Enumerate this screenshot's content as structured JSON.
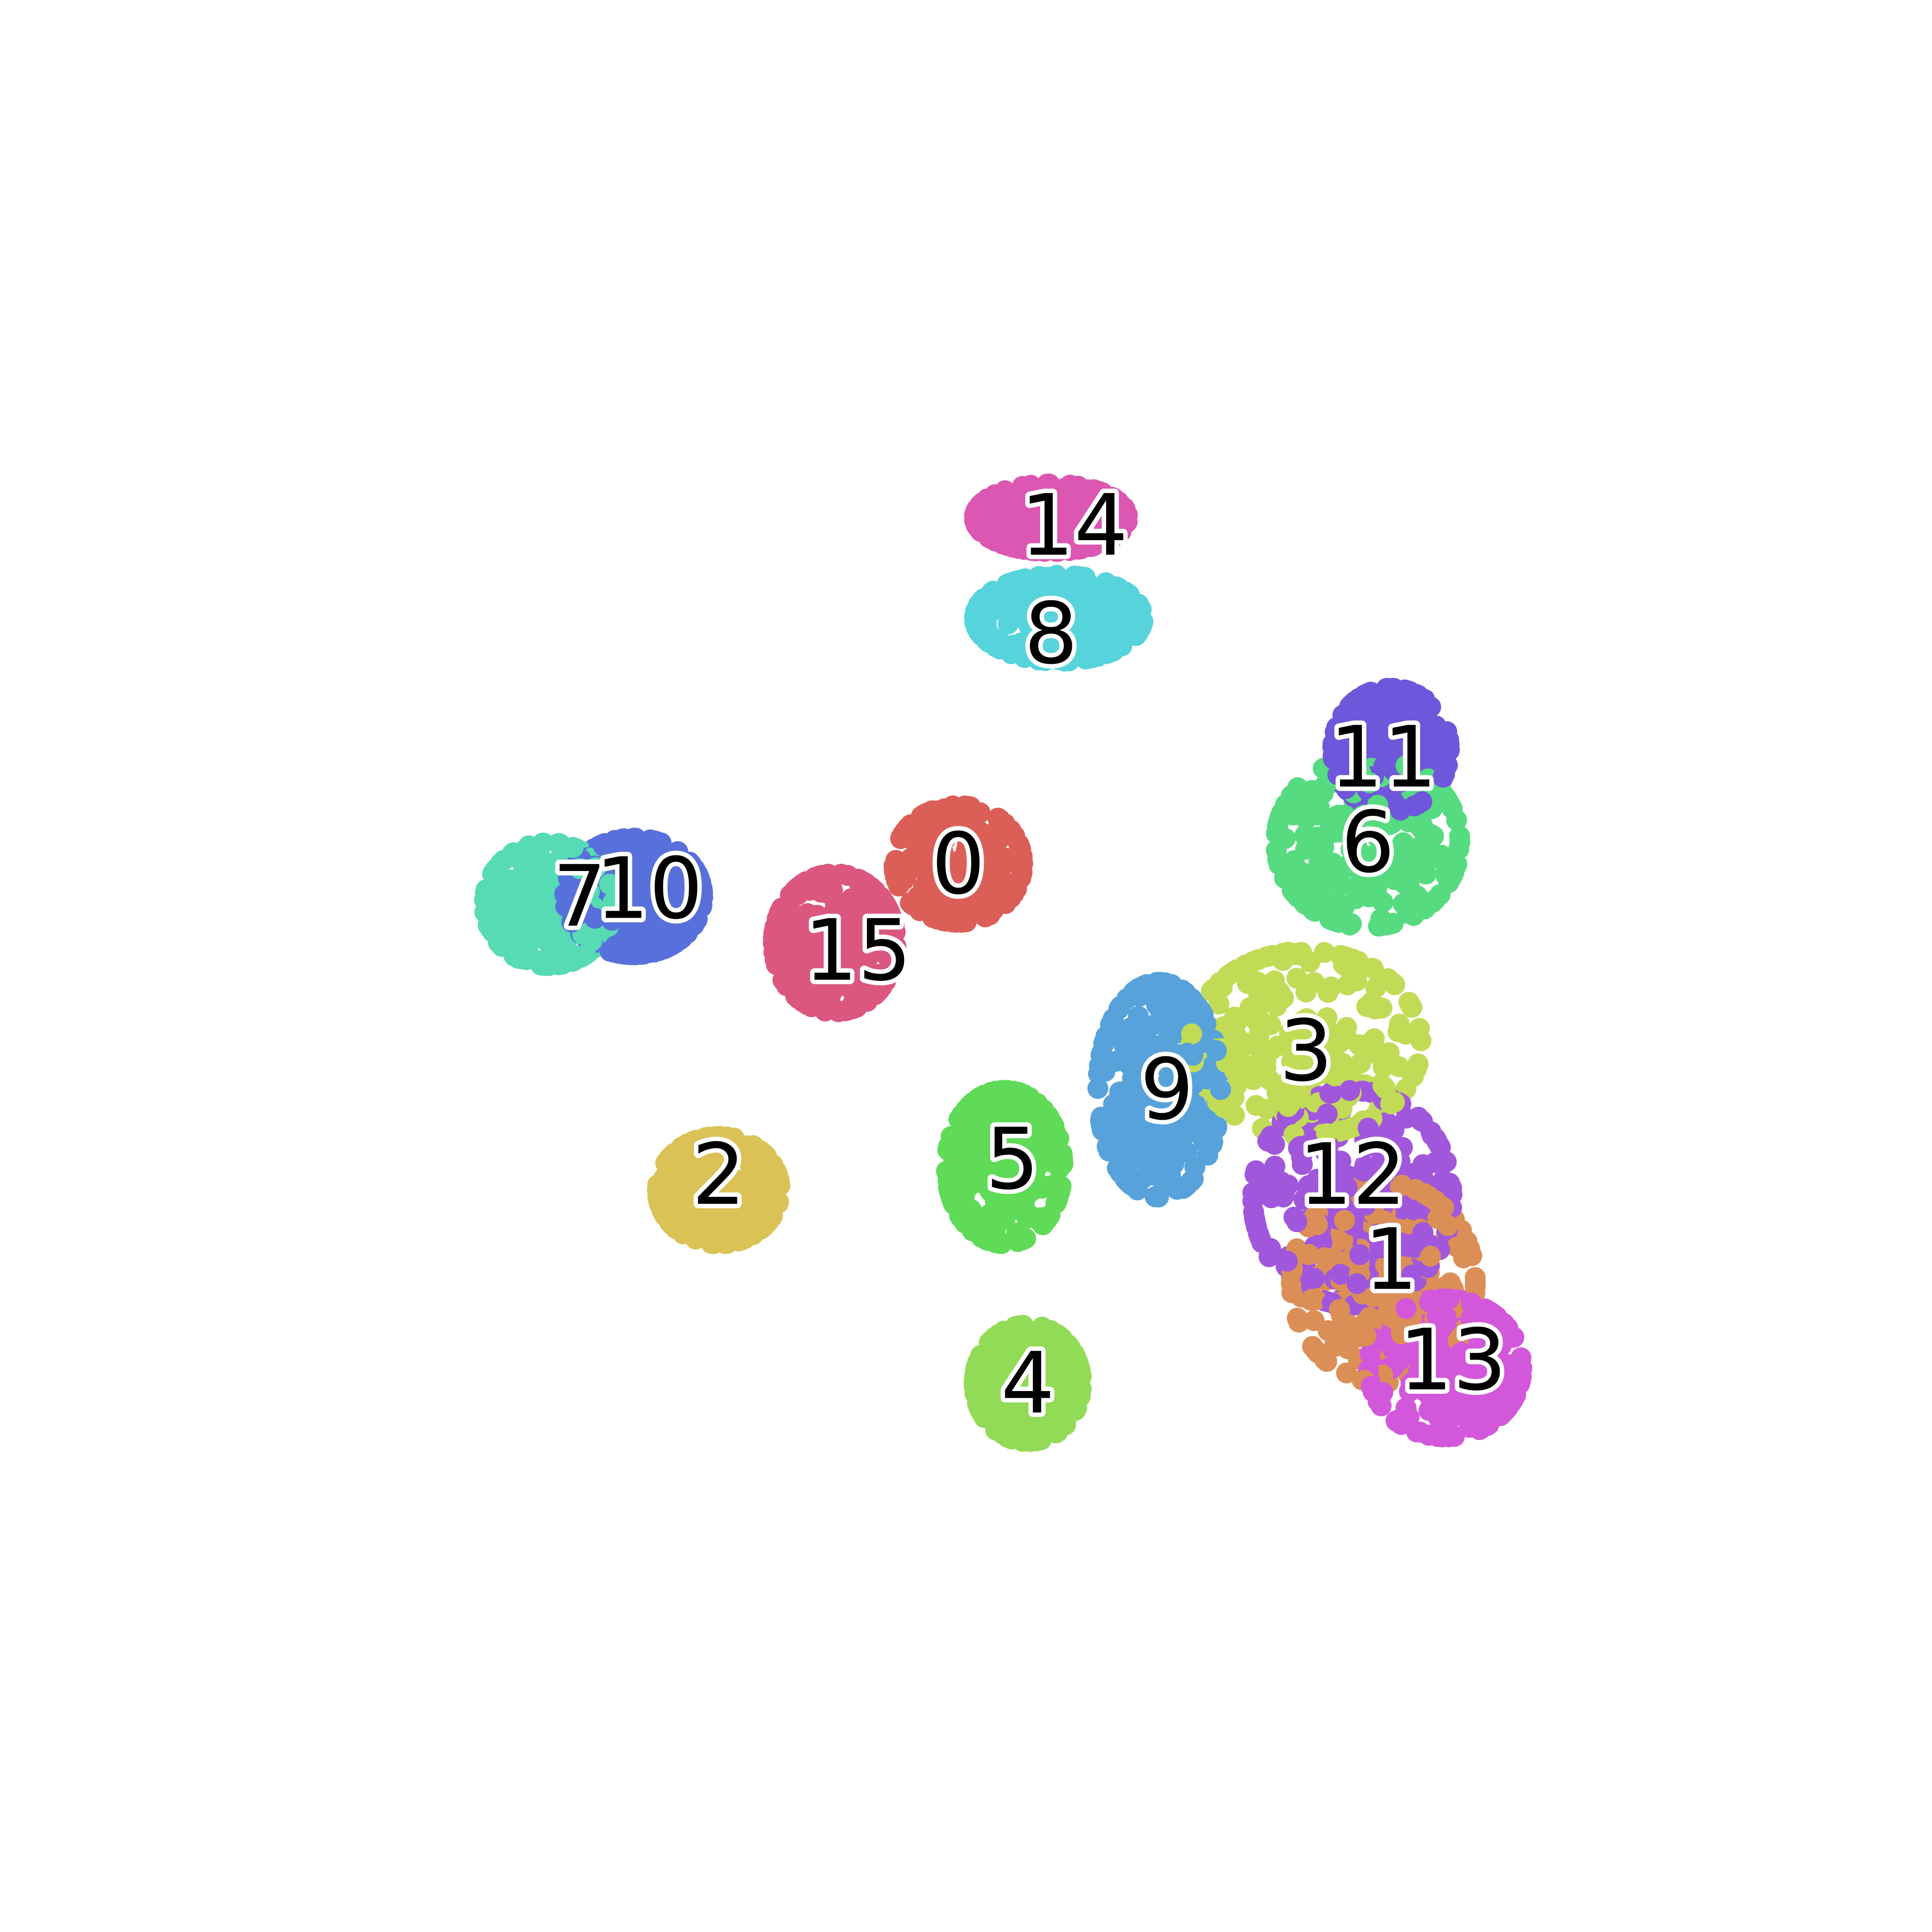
{
  "chart_data": {
    "type": "scatter",
    "title": "",
    "xlabel": "",
    "ylabel": "",
    "axes_visible": false,
    "grid": false,
    "legend": "none",
    "xlim": [
      0,
      100
    ],
    "ylim": [
      0,
      100
    ],
    "clusters": [
      {
        "label": "0",
        "color": "#DB5F57",
        "center": [
          49.5,
          56.6
        ],
        "spread": [
          4.2,
          3.8
        ]
      },
      {
        "label": "1",
        "color": "#DB8F57",
        "center": [
          77.0,
          29.5
        ],
        "spread": [
          6.0,
          6.5
        ]
      },
      {
        "label": "2",
        "color": "#DBC257",
        "center": [
          34.0,
          35.5
        ],
        "spread": [
          4.0,
          3.5
        ]
      },
      {
        "label": "3",
        "color": "#C2DB57",
        "center": [
          72.0,
          45.0
        ],
        "spread": [
          7.5,
          6.0
        ]
      },
      {
        "label": "4",
        "color": "#91DB57",
        "center": [
          54.0,
          23.0
        ],
        "spread": [
          3.5,
          3.8
        ]
      },
      {
        "label": "5",
        "color": "#5FDB57",
        "center": [
          52.5,
          37.0
        ],
        "spread": [
          3.8,
          5.0
        ]
      },
      {
        "label": "6",
        "color": "#57DB80",
        "center": [
          76.0,
          58.0
        ],
        "spread": [
          6.0,
          5.5
        ]
      },
      {
        "label": "7",
        "color": "#57DBB4",
        "center": [
          23.0,
          54.0
        ],
        "spread": [
          4.2,
          4.0
        ]
      },
      {
        "label": "8",
        "color": "#57D3DB",
        "center": [
          56.0,
          72.5
        ],
        "spread": [
          5.5,
          2.8
        ]
      },
      {
        "label": "9",
        "color": "#57A2DB",
        "center": [
          62.5,
          42.0
        ],
        "spread": [
          4.0,
          7.0
        ]
      },
      {
        "label": "10",
        "color": "#5770DB",
        "center": [
          28.5,
          54.5
        ],
        "spread": [
          4.5,
          3.8
        ]
      },
      {
        "label": "11",
        "color": "#6F57DB",
        "center": [
          77.5,
          64.0
        ],
        "spread": [
          3.8,
          4.0
        ]
      },
      {
        "label": "12",
        "color": "#A157DB",
        "center": [
          75.0,
          35.0
        ],
        "spread": [
          6.5,
          7.0
        ]
      },
      {
        "label": "13",
        "color": "#D357DB",
        "center": [
          81.0,
          24.0
        ],
        "spread": [
          5.0,
          4.5
        ]
      },
      {
        "label": "14",
        "color": "#DB57B2",
        "center": [
          55.5,
          79.0
        ],
        "spread": [
          5.0,
          2.2
        ]
      },
      {
        "label": "15",
        "color": "#DB5780",
        "center": [
          41.5,
          51.5
        ],
        "spread": [
          4.0,
          4.5
        ]
      }
    ],
    "cluster_labels": [
      {
        "text": "0",
        "x": 49.5,
        "y": 56.6
      },
      {
        "text": "1",
        "x": 77.5,
        "y": 31.0
      },
      {
        "text": "2",
        "x": 34.0,
        "y": 36.5
      },
      {
        "text": "3",
        "x": 72.0,
        "y": 44.5
      },
      {
        "text": "4",
        "x": 54.0,
        "y": 23.0
      },
      {
        "text": "5",
        "x": 53.0,
        "y": 37.5
      },
      {
        "text": "6",
        "x": 76.0,
        "y": 58.0
      },
      {
        "text": "7",
        "x": 25.0,
        "y": 54.5
      },
      {
        "text": "10",
        "x": 29.5,
        "y": 55.0
      },
      {
        "text": "8",
        "x": 55.5,
        "y": 71.5
      },
      {
        "text": "9",
        "x": 63.0,
        "y": 42.0
      },
      {
        "text": "11",
        "x": 77.0,
        "y": 63.5
      },
      {
        "text": "12",
        "x": 75.0,
        "y": 36.5
      },
      {
        "text": "13",
        "x": 81.5,
        "y": 24.5
      },
      {
        "text": "14",
        "x": 57.0,
        "y": 78.5
      },
      {
        "text": "15",
        "x": 43.0,
        "y": 51.0
      }
    ]
  }
}
